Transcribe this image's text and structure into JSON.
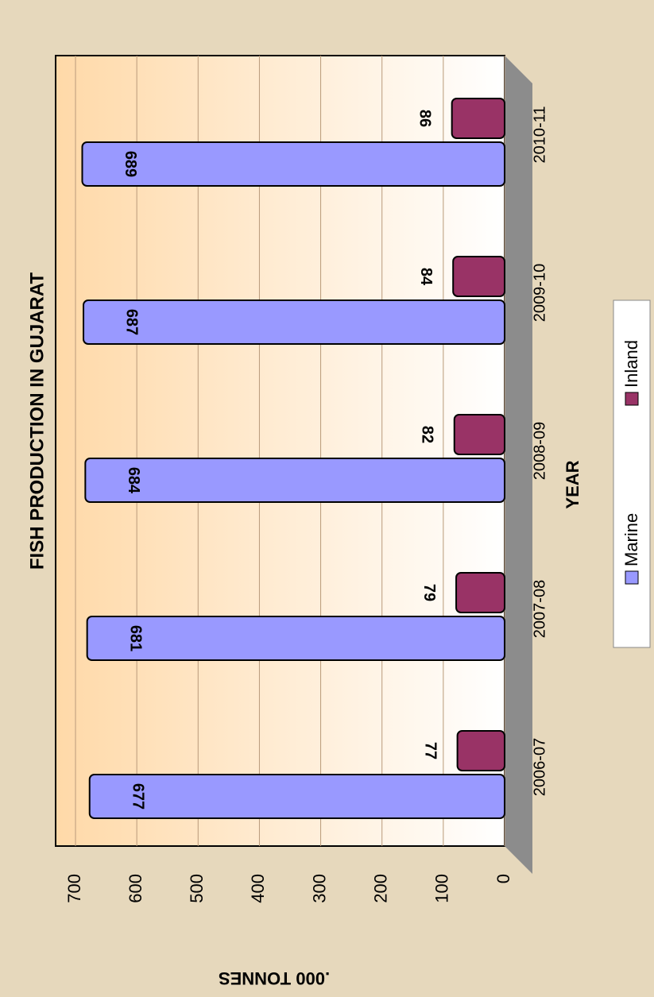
{
  "chart_data": {
    "type": "bar",
    "title": "FISH PRODUCTION IN GUJARAT",
    "x_label": "YEAR",
    "y_label": ".000 TONNES",
    "categories": [
      "2006-07",
      "2007-08",
      "2008-09",
      "2009-10",
      "2010-11"
    ],
    "series": [
      {
        "name": "Marine",
        "color": "#9999ff",
        "values": [
          677,
          681,
          684,
          687,
          689
        ]
      },
      {
        "name": "Inland",
        "color": "#993366",
        "values": [
          77,
          79,
          82,
          84,
          86
        ]
      }
    ],
    "ylim": [
      0,
      700
    ],
    "yticks": [
      0,
      100,
      200,
      300,
      400,
      500,
      600,
      700
    ],
    "grid": true
  }
}
